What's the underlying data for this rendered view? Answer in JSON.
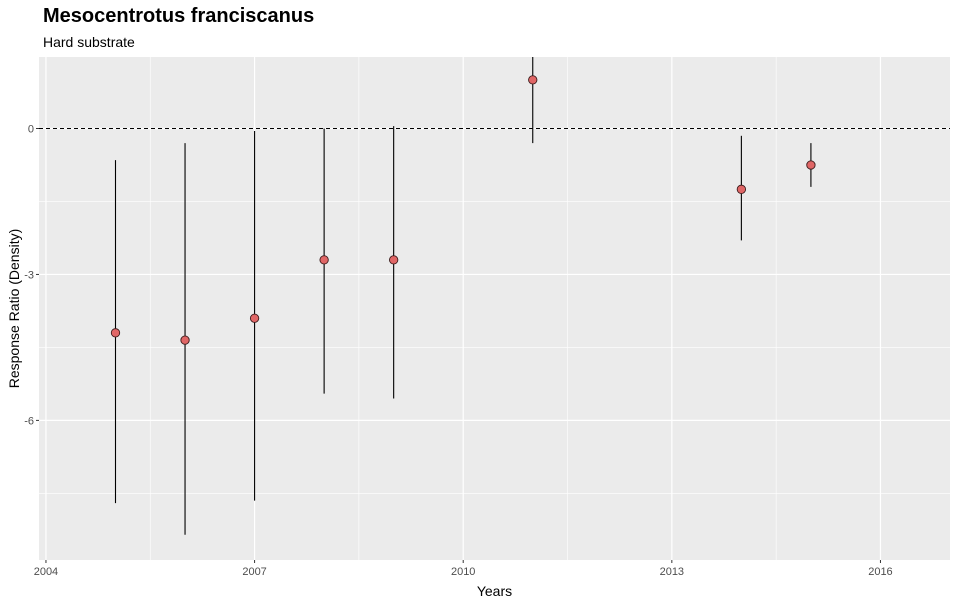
{
  "chart_data": {
    "type": "scatter",
    "title": "Mesocentrotus franciscanus",
    "subtitle": "Hard substrate",
    "xlabel": "Years",
    "ylabel": "Response Ratio (Density)",
    "xlim": [
      2003.9,
      2017.0
    ],
    "ylim": [
      -8.87,
      1.47
    ],
    "x_ticks": [
      2004,
      2007,
      2010,
      2013,
      2016
    ],
    "y_ticks": [
      -6,
      -3,
      0
    ],
    "reference_line": 0,
    "grid": true,
    "points": [
      {
        "x": 2005,
        "y": -4.2,
        "ymin": -7.7,
        "ymax": -0.65
      },
      {
        "x": 2006,
        "y": -4.35,
        "ymin": -8.35,
        "ymax": -0.3
      },
      {
        "x": 2007,
        "y": -3.9,
        "ymin": -7.65,
        "ymax": -0.05
      },
      {
        "x": 2008,
        "y": -2.7,
        "ymin": -5.45,
        "ymax": 0.0
      },
      {
        "x": 2009,
        "y": -2.7,
        "ymin": -5.55,
        "ymax": 0.05
      },
      {
        "x": 2011,
        "y": 1.0,
        "ymin": -0.3,
        "ymax": 2.3
      },
      {
        "x": 2014,
        "y": -1.25,
        "ymin": -2.3,
        "ymax": -0.15
      },
      {
        "x": 2015,
        "y": -0.75,
        "ymin": -1.2,
        "ymax": -0.3
      }
    ],
    "colors": {
      "panel": "#ebebeb",
      "grid": "#ffffff",
      "point_fill": "#e06666",
      "point_stroke": "#3a1a1a",
      "errorbar": "#000000",
      "reference_line": "#000000"
    }
  }
}
